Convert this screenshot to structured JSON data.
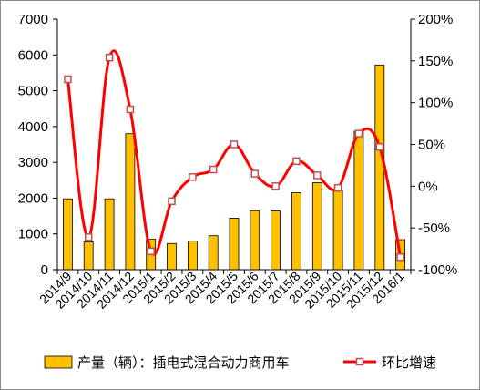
{
  "chart_data": {
    "type": "bar+line",
    "categories": [
      "2014/9",
      "2014/10",
      "2014/11",
      "2014/12",
      "2015/1",
      "2015/2",
      "2015/3",
      "2015/4",
      "2015/5",
      "2015/6",
      "2015/7",
      "2015/8",
      "2015/9",
      "2015/10",
      "2015/11",
      "2015/12",
      "2016/1"
    ],
    "series": [
      {
        "name": "产量（辆）：插电式混合动力商用车",
        "type": "bar",
        "axis": "left",
        "color": "#ffc000",
        "values": [
          1980,
          780,
          1980,
          3800,
          850,
          730,
          800,
          950,
          1440,
          1650,
          1640,
          2150,
          2430,
          2230,
          3870,
          5720,
          840
        ]
      },
      {
        "name": "环比增速",
        "type": "line",
        "axis": "right",
        "color": "#ff0000",
        "values": [
          128,
          -61,
          154,
          92,
          -78,
          -18,
          11,
          20,
          50,
          15,
          0,
          30,
          13,
          -2,
          63,
          47,
          -85
        ]
      }
    ],
    "yleft": {
      "min": 0,
      "max": 7000,
      "ticks": [
        0,
        1000,
        2000,
        3000,
        4000,
        5000,
        6000,
        7000
      ]
    },
    "yright": {
      "min": -100,
      "max": 200,
      "ticks": [
        "-100%",
        "-50%",
        "0%",
        "50%",
        "100%",
        "150%",
        "200%"
      ]
    },
    "grid": false,
    "legend_position": "bottom"
  }
}
